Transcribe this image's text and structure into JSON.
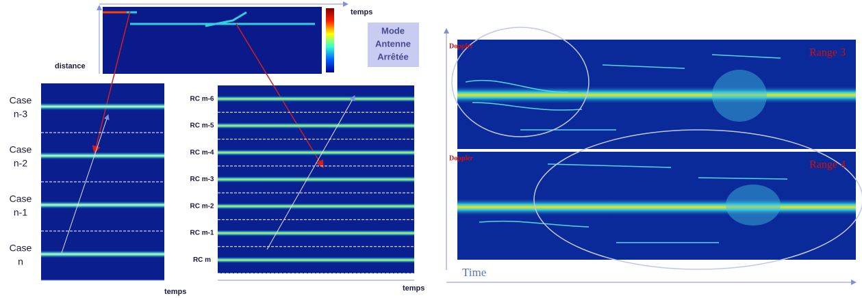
{
  "top_panel": {
    "x_label": "temps",
    "y_label": "distance"
  },
  "mode_box": {
    "lines": [
      "Mode",
      "Antenne",
      "Arrêtée"
    ]
  },
  "left_panel": {
    "cases": [
      [
        "Case",
        "n-3"
      ],
      [
        "Case",
        "n-2"
      ],
      [
        "Case",
        "n-1"
      ],
      [
        "Case",
        "n"
      ]
    ],
    "x_label": "temps"
  },
  "middle_panel": {
    "rows": [
      "RC m-6",
      "RC m-5",
      "RC m-4",
      "RC m-3",
      "RC m-2",
      "RC m-1",
      "RC m"
    ],
    "x_label": "temps"
  },
  "right_panel": {
    "plots": [
      {
        "y_label": "Doppler",
        "title": "Range 3"
      },
      {
        "y_label": "Doppler",
        "title": "Range 4"
      }
    ],
    "x_label": "Time"
  }
}
